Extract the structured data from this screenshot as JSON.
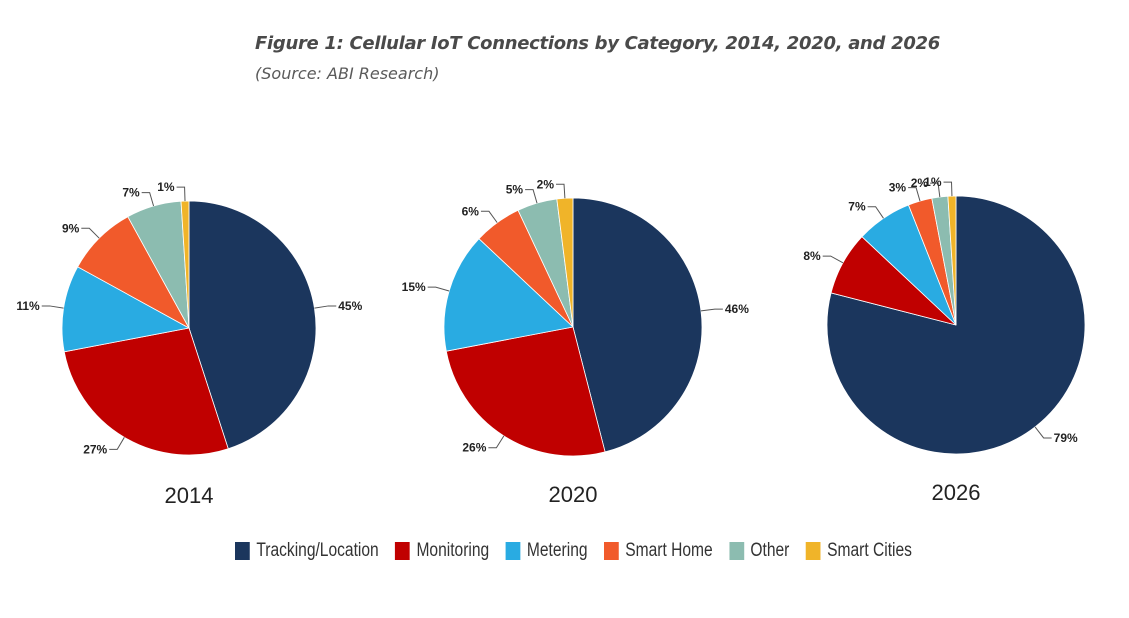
{
  "header": {
    "title": "Figure 1: Cellular IoT Connections by Category, 2014, 2020, and 2026",
    "source": "(Source: ABI Research)"
  },
  "chart_data": {
    "type": "pie",
    "title": "Figure 1: Cellular IoT Connections by Category, 2014, 2020, and 2026",
    "subtitle": "(Source: ABI Research)",
    "categories": [
      "Tracking/Location",
      "Monitoring",
      "Metering",
      "Smart Home",
      "Other",
      "Smart Cities"
    ],
    "colors": [
      "#1b365d",
      "#c00000",
      "#29abe2",
      "#f15a2b",
      "#8cbcb0",
      "#f0b429"
    ],
    "legend_position": "bottom",
    "pies": [
      {
        "label": "2014",
        "values": [
          45,
          27,
          11,
          9,
          7,
          1
        ],
        "labels": [
          "45%",
          "27%",
          "11%",
          "9%",
          "7%",
          "1%"
        ]
      },
      {
        "label": "2020",
        "values": [
          46,
          26,
          15,
          6,
          5,
          2
        ],
        "labels": [
          "46%",
          "26%",
          "15%",
          "6%",
          "5%",
          "2%"
        ]
      },
      {
        "label": "2026",
        "values": [
          79,
          8,
          7,
          3,
          2,
          1
        ],
        "labels": [
          "79%",
          "8%",
          "7%",
          "3%",
          "2%",
          "1%"
        ]
      }
    ]
  }
}
